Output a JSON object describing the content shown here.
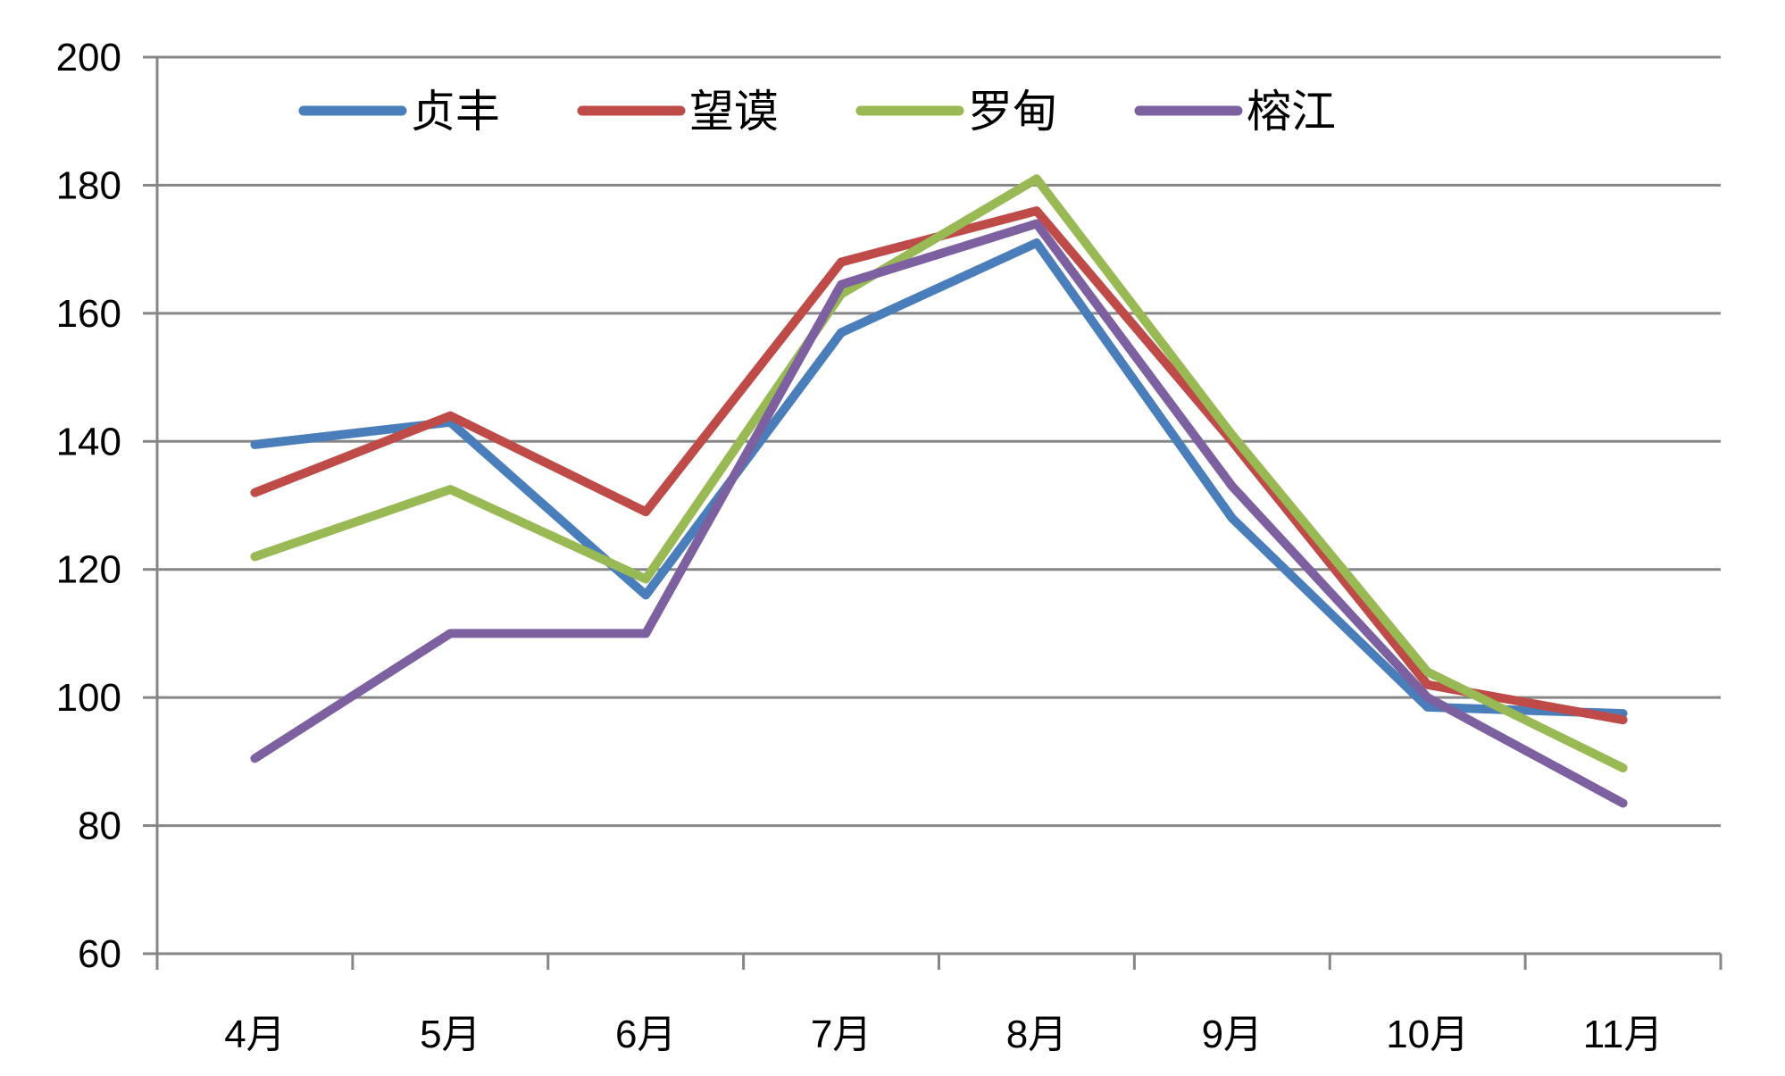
{
  "chart_data": {
    "type": "line",
    "categories": [
      "4月",
      "5月",
      "6月",
      "7月",
      "8月",
      "9月",
      "10月",
      "11月"
    ],
    "ylim": [
      60,
      200
    ],
    "yticks": [
      "60",
      "80",
      "100",
      "120",
      "140",
      "160",
      "180",
      "200"
    ],
    "grid": true,
    "legend": "top",
    "series": [
      {
        "name": "贞丰",
        "color": "#4a7ebb",
        "values": [
          139.5,
          143,
          116,
          157,
          171,
          128,
          98.5,
          97.5
        ]
      },
      {
        "name": "望谟",
        "color": "#be4b48",
        "values": [
          132,
          144,
          129,
          168,
          176,
          140,
          102,
          96.5
        ]
      },
      {
        "name": "罗甸",
        "color": "#98b954",
        "values": [
          122,
          132.5,
          118.5,
          163,
          181,
          141,
          104,
          89
        ]
      },
      {
        "name": "榕江",
        "color": "#7d60a0",
        "values": [
          90.5,
          110,
          110,
          164.5,
          174,
          133,
          100,
          83.5
        ]
      }
    ]
  }
}
